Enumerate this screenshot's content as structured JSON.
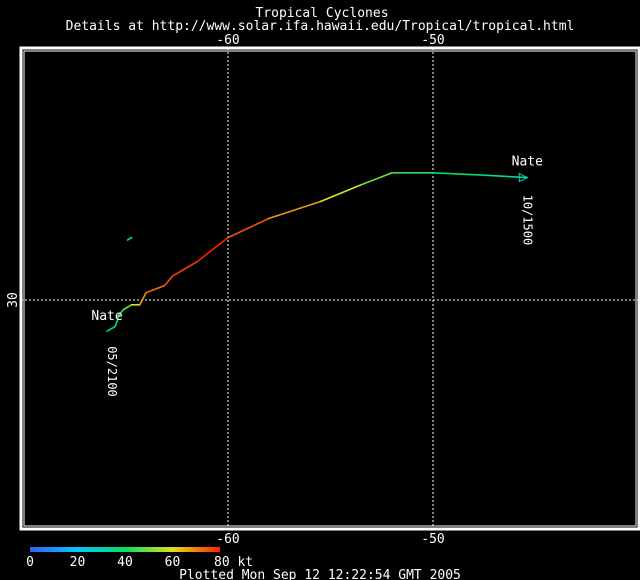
{
  "header": {
    "title": "Tropical Cyclones",
    "subtitle": "Details at http://www.solar.ifa.hawaii.edu/Tropical/tropical.html"
  },
  "footer": {
    "plotted": "Plotted Mon Sep 12 12:22:54 GMT 2005"
  },
  "map": {
    "lon_range": [
      -69,
      -40
    ],
    "lat_range": [
      20,
      40
    ],
    "grid_lons": [
      -60,
      -50
    ],
    "grid_lats": [
      30
    ],
    "top_lon_labels": [
      "-60",
      "-50"
    ],
    "bottom_lon_labels": [
      "-60",
      "-50"
    ],
    "left_lat_labels": [
      "30"
    ],
    "frame_color": "#ffffff",
    "grid_color": "#ffffff"
  },
  "colorbar": {
    "tick_labels": [
      "0",
      "20",
      "40",
      "60",
      "80 kt"
    ],
    "colors": [
      "#3060ff",
      "#00c8ff",
      "#00e060",
      "#e0e020",
      "#ff2000"
    ],
    "min_kt": 0,
    "max_kt": 80
  },
  "storms": [
    {
      "name": "Nate",
      "start_label": "Nate",
      "start_time": "05/2100",
      "end_label": "Nate",
      "end_time": "10/1500",
      "track": [
        {
          "lon": -65.9,
          "lat": 28.7,
          "kt": 35
        },
        {
          "lon": -65.5,
          "lat": 28.9,
          "kt": 35
        },
        {
          "lon": -65.3,
          "lat": 29.4,
          "kt": 40
        },
        {
          "lon": -65.1,
          "lat": 29.6,
          "kt": 45
        },
        {
          "lon": -64.7,
          "lat": 29.8,
          "kt": 55
        },
        {
          "lon": -64.3,
          "lat": 29.8,
          "kt": 65
        },
        {
          "lon": -64.0,
          "lat": 30.3,
          "kt": 70
        },
        {
          "lon": -63.1,
          "lat": 30.6,
          "kt": 75
        },
        {
          "lon": -62.7,
          "lat": 31.0,
          "kt": 75
        },
        {
          "lon": -61.5,
          "lat": 31.6,
          "kt": 80
        },
        {
          "lon": -60.0,
          "lat": 32.6,
          "kt": 80
        },
        {
          "lon": -58.0,
          "lat": 33.4,
          "kt": 70
        },
        {
          "lon": -55.5,
          "lat": 34.1,
          "kt": 65
        },
        {
          "lon": -53.5,
          "lat": 34.8,
          "kt": 55
        },
        {
          "lon": -52.0,
          "lat": 35.3,
          "kt": 45
        },
        {
          "lon": -50.0,
          "lat": 35.3,
          "kt": 45
        },
        {
          "lon": -47.5,
          "lat": 35.2,
          "kt": 35
        },
        {
          "lon": -45.4,
          "lat": 35.1,
          "kt": 30
        }
      ]
    },
    {
      "name": "",
      "start_label": "",
      "start_time": "",
      "end_label": "",
      "end_time": "",
      "track": [
        {
          "lon": -64.9,
          "lat": 32.5,
          "kt": 30
        },
        {
          "lon": -64.7,
          "lat": 32.6,
          "kt": 30
        }
      ]
    }
  ]
}
